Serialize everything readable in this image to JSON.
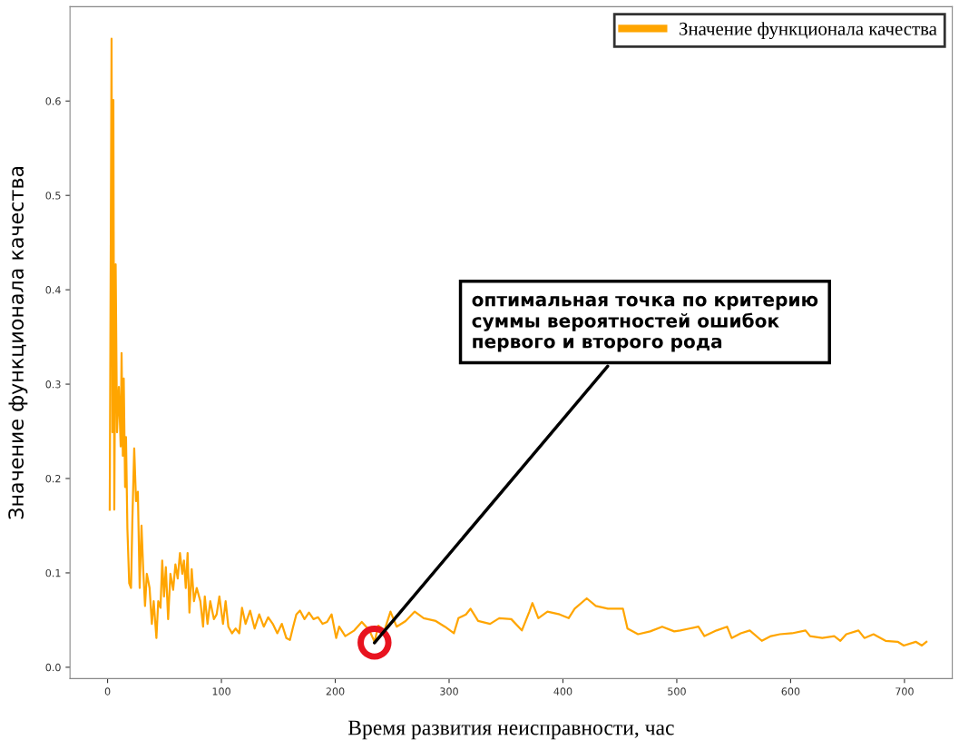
{
  "chart_data": {
    "type": "line",
    "xlabel": "Время развития неисправности, час",
    "ylabel": "Значение функционала качества",
    "xlim": [
      -33,
      742
    ],
    "ylim": [
      -0.012,
      0.7
    ],
    "xticks": [
      0,
      100,
      200,
      300,
      400,
      500,
      600,
      700
    ],
    "yticks": [
      {
        "value": 0,
        "label": "0.0"
      },
      {
        "value": 0.1,
        "label": "0.1"
      },
      {
        "value": 0.2,
        "label": "0.2"
      },
      {
        "value": 0.3,
        "label": "0.3"
      },
      {
        "value": 0.4,
        "label": "0.4"
      },
      {
        "value": 0.5,
        "label": "0.5"
      },
      {
        "value": 0.6,
        "label": "0.6"
      }
    ],
    "grid": false,
    "legend": "top right",
    "marker": "none",
    "line_style": "solid",
    "annotations": [
      {
        "text": "оптимальная точка по критерию суммы вероятностей ошибок первого и второго рода",
        "x": 234.5,
        "y": 0.026
      }
    ],
    "series": [
      {
        "name": "Значение функционала качества",
        "color": "#ffa500",
        "x": [
          1.9,
          3.5,
          4.3,
          5.1,
          5.9,
          7.1,
          8.3,
          9.9,
          11.5,
          12.3,
          13.4,
          14.2,
          15.4,
          16.2,
          17.4,
          19,
          20.6,
          21.8,
          23.4,
          25,
          26.6,
          28.2,
          29.8,
          31.3,
          32.9,
          34.5,
          36.9,
          38.9,
          40.5,
          42.9,
          44.5,
          46.5,
          48,
          49.6,
          51.2,
          53.2,
          55.2,
          57.6,
          59.6,
          61.6,
          63.6,
          65.6,
          67.1,
          68.7,
          70.3,
          71.9,
          73.9,
          75.9,
          78.3,
          81.5,
          83.9,
          85.4,
          87.8,
          90.2,
          93.4,
          95.8,
          98.2,
          101.4,
          103.7,
          106.1,
          109.3,
          112.5,
          115.7,
          118.1,
          121.2,
          125.2,
          129.2,
          133.2,
          137.2,
          141.1,
          145.1,
          149.1,
          153.1,
          157,
          160.2,
          162.6,
          165.8,
          169,
          173,
          176.9,
          180.9,
          184.9,
          188.9,
          192.8,
          196.8,
          200.8,
          203.4,
          208.8,
          216.7,
          223.3,
          230,
          234.5,
          237.9,
          243.2,
          248.5,
          253.9,
          261.8,
          269.8,
          277.7,
          288.3,
          296.3,
          304.2,
          308.2,
          314.8,
          318.8,
          325.5,
          336,
          344,
          354.6,
          363.9,
          370.5,
          373.2,
          378.4,
          386.4,
          397.1,
          405,
          410.3,
          420.9,
          428.9,
          439.5,
          452.7,
          456.7,
          466,
          476.6,
          487.2,
          497.8,
          503.1,
          511.1,
          519,
          524.3,
          534.9,
          544.2,
          548.2,
          556.2,
          564.1,
          574.7,
          582.7,
          590.6,
          601.2,
          613.1,
          617.1,
          627.8,
          638.3,
          643.7,
          648.9,
          659.6,
          664.8,
          672.8,
          683.4,
          694,
          699.4,
          709.9,
          715.3,
          719.3
        ],
        "values": [
          0.167,
          0.666,
          0.249,
          0.601,
          0.167,
          0.427,
          0.249,
          0.297,
          0.234,
          0.333,
          0.224,
          0.306,
          0.191,
          0.244,
          0.147,
          0.089,
          0.084,
          0.157,
          0.232,
          0.176,
          0.186,
          0.084,
          0.15,
          0.104,
          0.065,
          0.099,
          0.084,
          0.046,
          0.07,
          0.031,
          0.07,
          0.063,
          0.113,
          0.075,
          0.106,
          0.051,
          0.099,
          0.082,
          0.109,
          0.094,
          0.121,
          0.099,
          0.113,
          0.084,
          0.121,
          0.058,
          0.104,
          0.07,
          0.084,
          0.07,
          0.043,
          0.075,
          0.046,
          0.07,
          0.051,
          0.056,
          0.075,
          0.046,
          0.07,
          0.043,
          0.036,
          0.041,
          0.036,
          0.063,
          0.046,
          0.06,
          0.041,
          0.056,
          0.043,
          0.053,
          0.046,
          0.036,
          0.046,
          0.031,
          0.029,
          0.041,
          0.056,
          0.06,
          0.051,
          0.058,
          0.051,
          0.053,
          0.046,
          0.048,
          0.056,
          0.031,
          0.043,
          0.033,
          0.039,
          0.048,
          0.039,
          0.027,
          0.044,
          0.039,
          0.059,
          0.043,
          0.049,
          0.059,
          0.052,
          0.049,
          0.043,
          0.036,
          0.052,
          0.056,
          0.062,
          0.049,
          0.046,
          0.052,
          0.051,
          0.039,
          0.059,
          0.068,
          0.052,
          0.059,
          0.056,
          0.052,
          0.062,
          0.073,
          0.065,
          0.062,
          0.062,
          0.041,
          0.035,
          0.038,
          0.043,
          0.038,
          0.039,
          0.041,
          0.043,
          0.033,
          0.039,
          0.043,
          0.031,
          0.036,
          0.039,
          0.028,
          0.033,
          0.035,
          0.036,
          0.039,
          0.033,
          0.031,
          0.033,
          0.028,
          0.035,
          0.039,
          0.031,
          0.035,
          0.028,
          0.027,
          0.023,
          0.027,
          0.023,
          0.027
        ]
      }
    ]
  }
}
